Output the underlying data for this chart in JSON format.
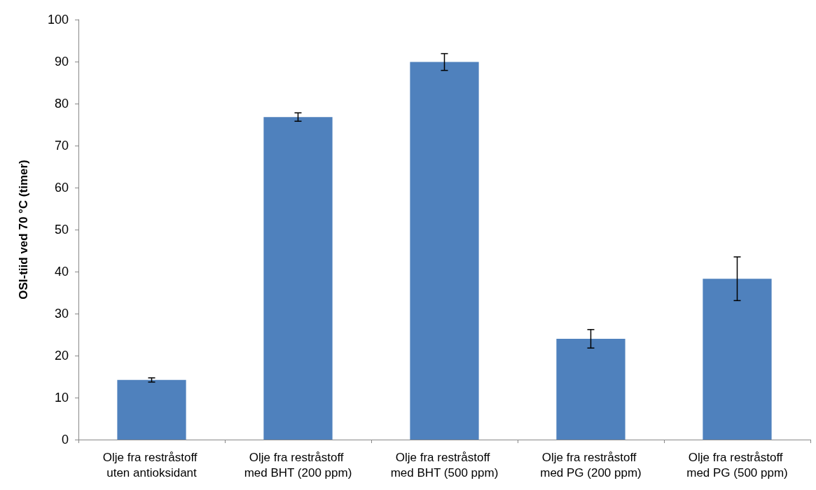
{
  "chart_data": {
    "type": "bar",
    "ylabel": "OSI-tiid ved 70 °C (timer)",
    "categories": [
      "Olje fra restråstoff uten antioksidant",
      "Olje fra restråstoff med BHT (200 ppm)",
      "Olje fra restråstoff med BHT (500 ppm)",
      "Olje fra restråstoff med PG (200 ppm)",
      "Olje fra restråstoff med PG (500 ppm)"
    ],
    "values": [
      14.2,
      76.8,
      89.9,
      24,
      38.3
    ],
    "errors": [
      0.5,
      1,
      2,
      2.2,
      5.2
    ],
    "color": "#4f81bd",
    "ylim": [
      0,
      100
    ],
    "yticks": [
      0,
      10,
      20,
      30,
      40,
      50,
      60,
      70,
      80,
      90,
      100
    ],
    "grid": false
  }
}
